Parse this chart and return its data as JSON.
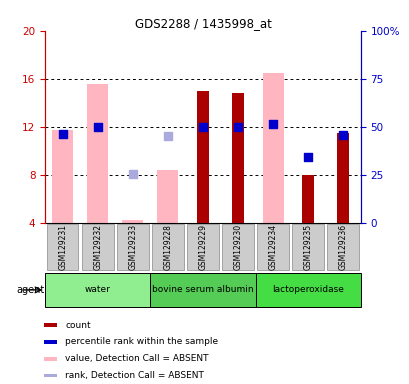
{
  "title": "GDS2288 / 1435998_at",
  "samples": [
    "GSM129231",
    "GSM129232",
    "GSM129233",
    "GSM129228",
    "GSM129229",
    "GSM129230",
    "GSM129234",
    "GSM129235",
    "GSM129236"
  ],
  "groups": [
    {
      "label": "water",
      "color": "#90EE90",
      "indices": [
        0,
        1,
        2
      ]
    },
    {
      "label": "bovine serum albumin",
      "color": "#55CC55",
      "indices": [
        3,
        4,
        5
      ]
    },
    {
      "label": "lactoperoxidase",
      "color": "#44DD44",
      "indices": [
        6,
        7,
        8
      ]
    }
  ],
  "bar_bottom": 4,
  "ylim_left": [
    4,
    20
  ],
  "ylim_right": [
    0,
    100
  ],
  "yticks_left": [
    4,
    8,
    12,
    16,
    20
  ],
  "ytick_labels_left": [
    "4",
    "8",
    "12",
    "16",
    "20"
  ],
  "ytick_labels_right": [
    "0",
    "25",
    "50",
    "75",
    "100%"
  ],
  "left_axis_color": "#CC0000",
  "right_axis_color": "#0000CC",
  "count_bars": [
    null,
    null,
    null,
    null,
    15.0,
    14.8,
    null,
    8.0,
    11.5
  ],
  "count_bar_color": "#AA0000",
  "absent_value_bars": [
    11.7,
    15.6,
    4.2,
    8.4,
    null,
    null,
    16.5,
    null,
    null
  ],
  "absent_value_bar_color": "#FFB6C1",
  "percentile_rank_dots": [
    11.4,
    12.0,
    null,
    null,
    12.0,
    12.0,
    12.2,
    9.5,
    11.3
  ],
  "percentile_rank_dot_color": "#0000CC",
  "absent_rank_dots": [
    null,
    null,
    8.1,
    11.2,
    null,
    null,
    null,
    null,
    null
  ],
  "absent_rank_dot_color": "#AAAADD",
  "legend_items": [
    {
      "color": "#AA0000",
      "label": "count"
    },
    {
      "color": "#0000CC",
      "label": "percentile rank within the sample"
    },
    {
      "color": "#FFB6C1",
      "label": "value, Detection Call = ABSENT"
    },
    {
      "color": "#AAAADD",
      "label": "rank, Detection Call = ABSENT"
    }
  ],
  "count_bar_width": 0.35,
  "absent_bar_width": 0.6,
  "dot_size": 30,
  "grid_lines": [
    8,
    12,
    16
  ],
  "sample_box_color": "#CCCCCC",
  "sample_box_edge": "#888888"
}
